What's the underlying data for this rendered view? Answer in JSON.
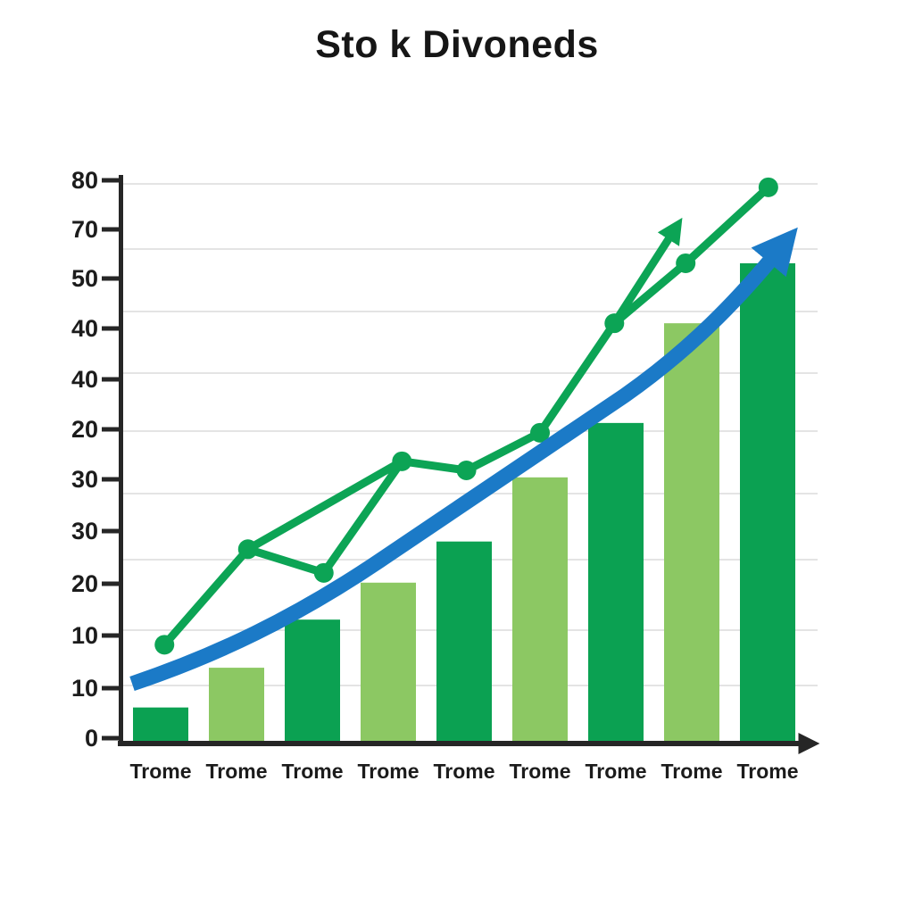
{
  "header": {
    "title": "Sto k Divoneds"
  },
  "chart_data": {
    "type": "bar+line",
    "title": "Sto k Divoneds",
    "categories": [
      "Trome",
      "Trome",
      "Trome",
      "Trome",
      "Trome",
      "Trome",
      "Trome",
      "Trome",
      "Trome"
    ],
    "y_tick_labels": [
      "80",
      "70",
      "50",
      "40",
      "40",
      "20",
      "30",
      "30",
      "20",
      "10",
      "10",
      "0"
    ],
    "ylim": [
      0,
      80
    ],
    "grid": "horizontal-light",
    "legend": "none",
    "series": [
      {
        "name": "dividend-bars",
        "type": "bar",
        "values": [
          4.4,
          10.1,
          17.0,
          22.3,
          28.2,
          37.4,
          45.2,
          59.5,
          68.1
        ],
        "color_pattern": [
          "bar_dark",
          "bar_light"
        ]
      },
      {
        "name": "dividend-line",
        "type": "line",
        "marker": "circle",
        "x_index": [
          0.05,
          1.15,
          2.15,
          3.18,
          4.03,
          5.0,
          5.98,
          6.92,
          8.01
        ],
        "values": [
          13.4,
          27.1,
          23.7,
          39.7,
          38.4,
          43.8,
          59.5,
          68.1,
          79.0
        ],
        "extra_segment_between_points": [
          1,
          3
        ],
        "branch_arrow": {
          "from_point": 6,
          "to_x_index": 6.72,
          "to_value": 72
        }
      },
      {
        "name": "trend-arrow",
        "type": "line",
        "style": "thick-curved-arrow",
        "start": {
          "x_index": -0.38,
          "value": 7.8
        },
        "end": {
          "x_index": 8.45,
          "value": 76
        }
      }
    ],
    "colors": {
      "bar_dark": "#0ba152",
      "bar_light": "#8cc863",
      "line_green": "#0ca455",
      "trend_blue": "#1b7ac7",
      "axis": "#262626",
      "grid": "#e4e4e4",
      "text": "#1c1c1c"
    }
  }
}
